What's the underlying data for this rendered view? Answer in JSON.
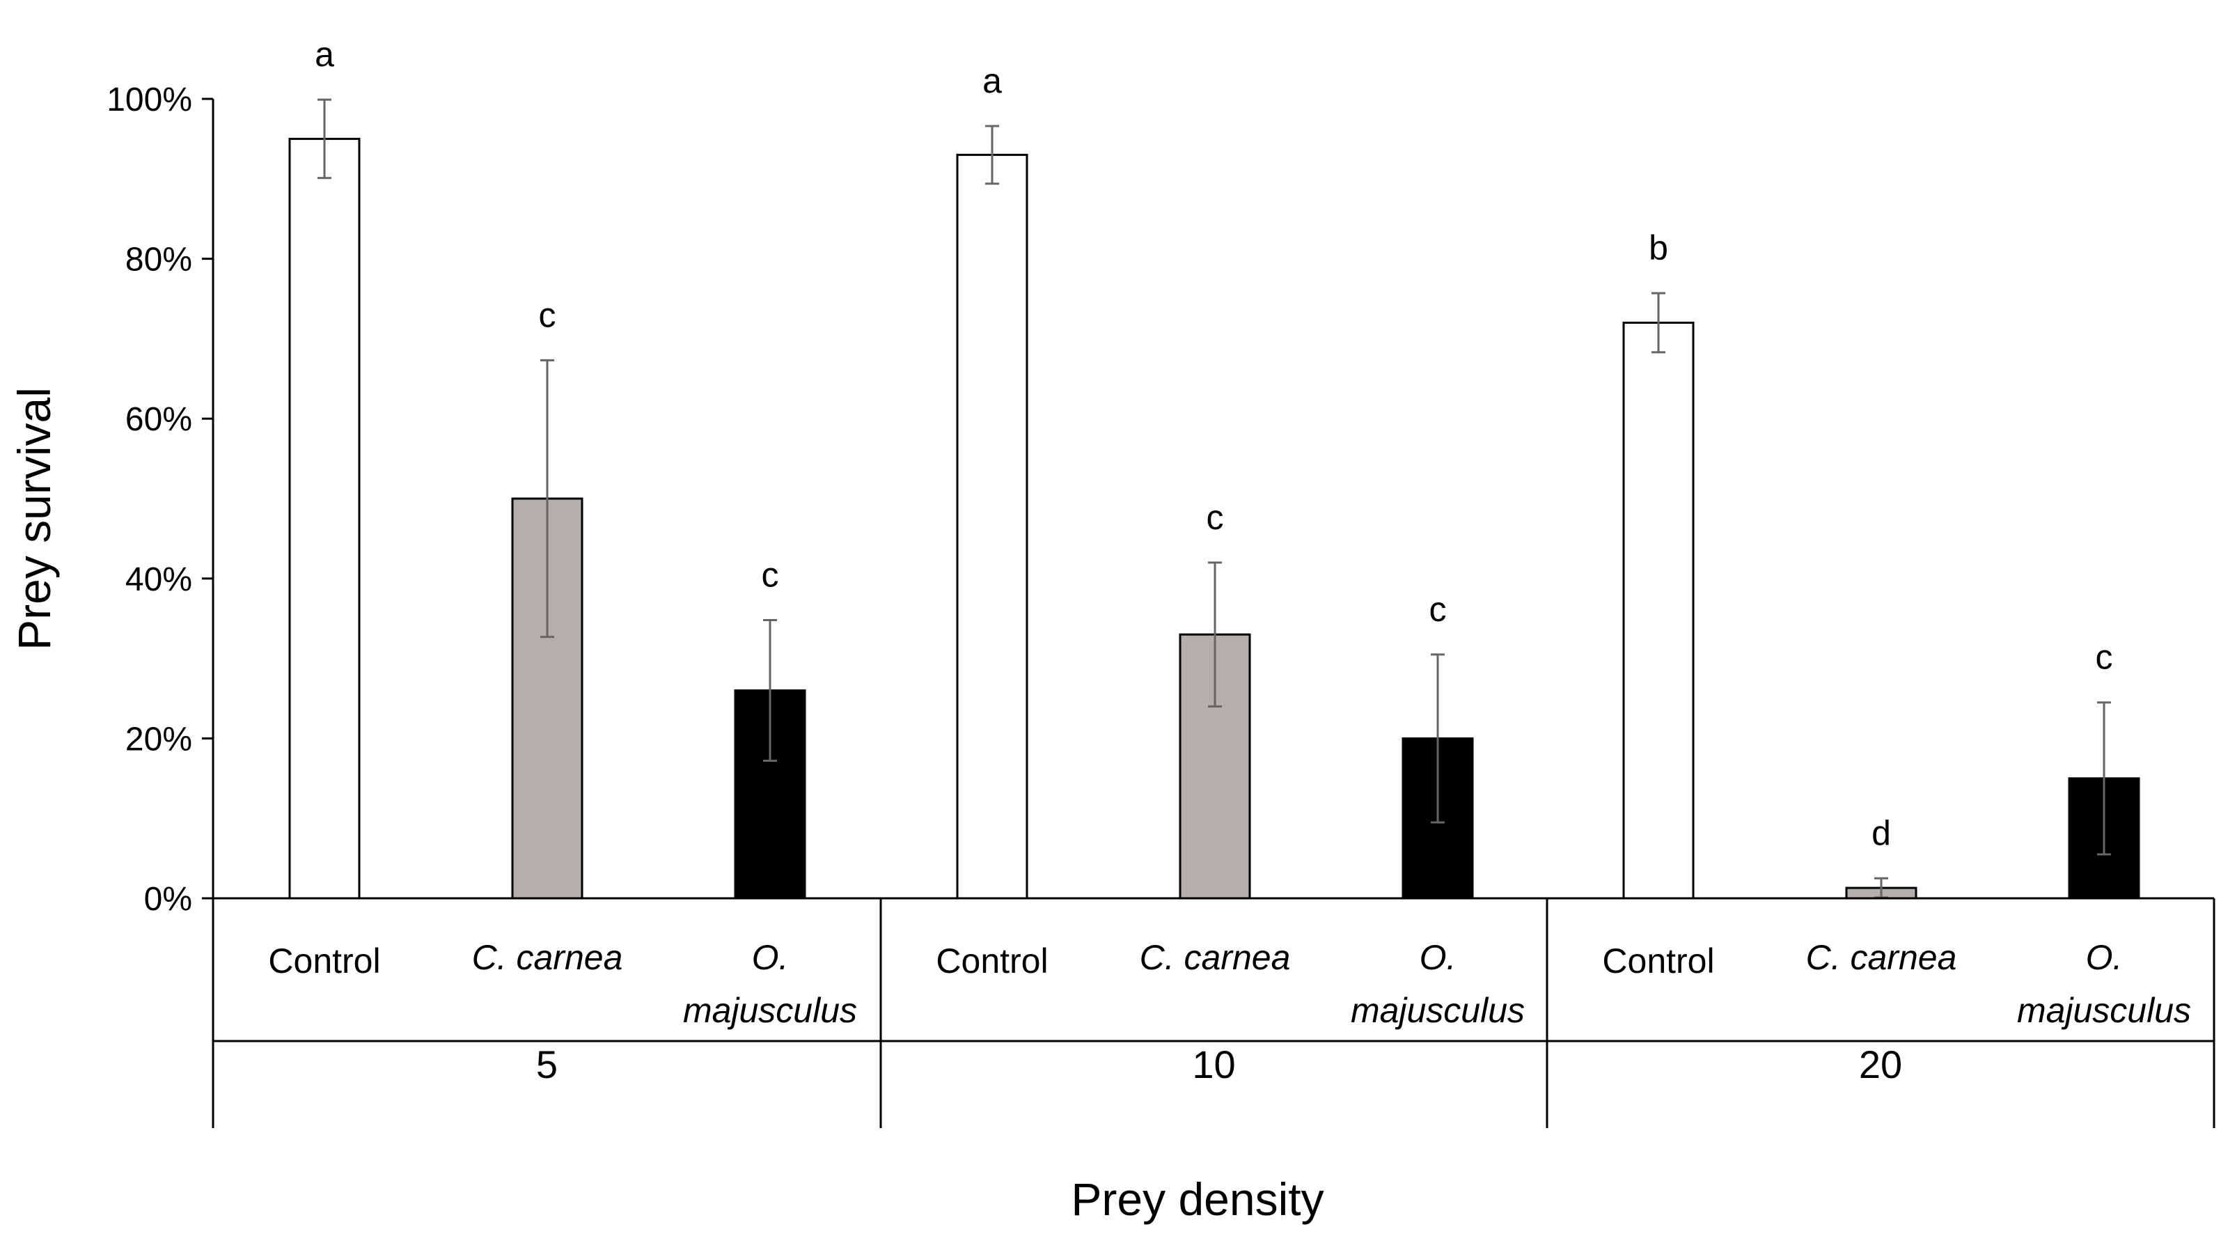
{
  "chart_data": {
    "type": "bar",
    "title": "",
    "xlabel": "Prey density",
    "ylabel": "Prey survival",
    "ylim": [
      0,
      100
    ],
    "yticks": [
      "0%",
      "20%",
      "40%",
      "60%",
      "80%",
      "100%"
    ],
    "ytick_values": [
      0,
      20,
      40,
      60,
      80,
      100
    ],
    "grid": false,
    "legend": "none",
    "treatments": [
      {
        "name": "Control",
        "line1": "Control",
        "line2": "",
        "italic": false,
        "color": "#ffffff"
      },
      {
        "name": "C. carnea",
        "line1": "C. carnea",
        "line2": "",
        "italic": true,
        "color": "#b3afab"
      },
      {
        "name": "O. majusculus",
        "line1": "O.",
        "line2": "majusculus",
        "italic": true,
        "color": "#000000"
      }
    ],
    "groups": [
      {
        "label": "5",
        "values": [
          95,
          50,
          26
        ],
        "errors": [
          4.9,
          17.3,
          8.8
        ],
        "letters": [
          "a",
          "c",
          "c"
        ]
      },
      {
        "label": "10",
        "values": [
          93,
          33,
          20
        ],
        "errors": [
          3.6,
          9.0,
          10.5
        ],
        "letters": [
          "a",
          "c",
          "c"
        ]
      },
      {
        "label": "20",
        "values": [
          72,
          1.3,
          15
        ],
        "errors": [
          3.7,
          1.2,
          9.5
        ],
        "letters": [
          "b",
          "d",
          "c"
        ]
      }
    ]
  }
}
